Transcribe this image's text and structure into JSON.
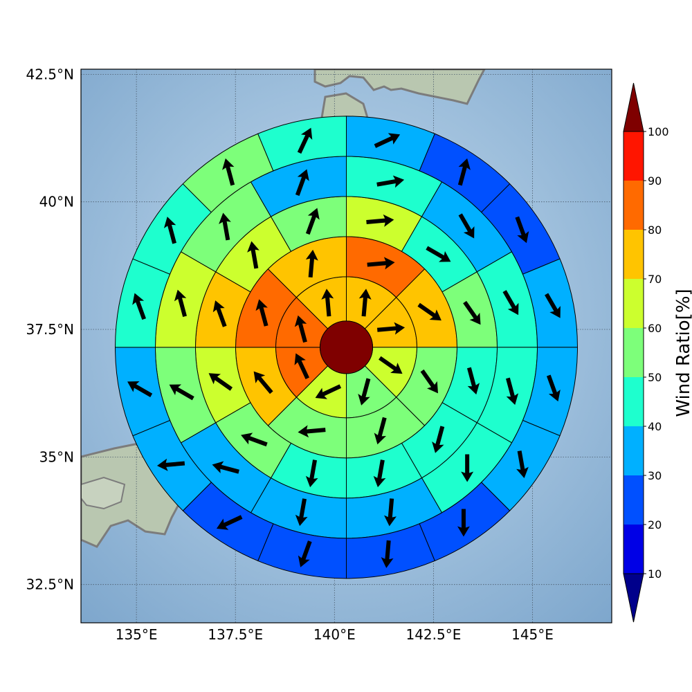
{
  "map": {
    "lon_ticks": [
      {
        "value": 135,
        "label": "135°E"
      },
      {
        "value": 137.5,
        "label": "137.5°E"
      },
      {
        "value": 140,
        "label": "140°E"
      },
      {
        "value": 142.5,
        "label": "142.5°E"
      },
      {
        "value": 145,
        "label": "145°E"
      }
    ],
    "lat_ticks": [
      {
        "value": 32.5,
        "label": "32.5°N"
      },
      {
        "value": 35,
        "label": "35°N"
      },
      {
        "value": 37.5,
        "label": "37.5°N"
      },
      {
        "value": 40,
        "label": "40°N"
      },
      {
        "value": 42.5,
        "label": "42.5°N"
      }
    ],
    "lon_range": [
      133.6,
      147.0
    ],
    "lat_range": [
      31.75,
      42.6
    ],
    "center": {
      "lon": 140.3,
      "lat": 37.15
    },
    "grid": true
  },
  "colorbar": {
    "label": "Wind Ratio[%]",
    "ticks": [
      "10",
      "20",
      "30",
      "40",
      "50",
      "60",
      "70",
      "80",
      "90",
      "100"
    ],
    "bins": [
      {
        "range": "<10",
        "color": "#00008b"
      },
      {
        "range": "10-20",
        "color": "#0000e6"
      },
      {
        "range": "20-30",
        "color": "#0050ff"
      },
      {
        "range": "30-40",
        "color": "#00b0ff"
      },
      {
        "range": "40-50",
        "color": "#1effce"
      },
      {
        "range": "50-60",
        "color": "#7dff7a"
      },
      {
        "range": "60-70",
        "color": "#ccff2e"
      },
      {
        "range": "70-80",
        "color": "#ffc400"
      },
      {
        "range": "80-90",
        "color": "#ff6a00"
      },
      {
        "range": "90-100",
        "color": "#ff1500"
      },
      {
        "range": ">100",
        "color": "#7f0000"
      }
    ]
  },
  "chart_data": {
    "type": "heatmap",
    "description_units": "sector wind ratio bin index (0:<10, 1:10-20 ... 9:90-100, 10:>100), arrow direction in degrees clockwise from north",
    "center_cell": {
      "bin": 10
    },
    "rings": [
      {
        "ring": 1,
        "sectors": [
          {
            "dir_deg": 0,
            "bin": 7,
            "arrow": 5
          },
          {
            "dir_deg": 45,
            "bin": 7,
            "arrow": 85
          },
          {
            "dir_deg": 90,
            "bin": 6,
            "arrow": 125
          },
          {
            "dir_deg": 135,
            "bin": 5,
            "arrow": 195
          },
          {
            "dir_deg": 180,
            "bin": 6,
            "arrow": 245
          },
          {
            "dir_deg": 225,
            "bin": 8,
            "arrow": 335
          },
          {
            "dir_deg": 270,
            "bin": 8,
            "arrow": 345
          },
          {
            "dir_deg": 315,
            "bin": 7,
            "arrow": 355
          }
        ]
      },
      {
        "ring": 2,
        "sectors": [
          {
            "dir_deg": 0,
            "bin": 8,
            "arrow": 85
          },
          {
            "dir_deg": 45,
            "bin": 7,
            "arrow": 125
          },
          {
            "dir_deg": 90,
            "bin": 5,
            "arrow": 145
          },
          {
            "dir_deg": 135,
            "bin": 5,
            "arrow": 195
          },
          {
            "dir_deg": 180,
            "bin": 5,
            "arrow": 265
          },
          {
            "dir_deg": 225,
            "bin": 7,
            "arrow": 320
          },
          {
            "dir_deg": 270,
            "bin": 8,
            "arrow": 345
          },
          {
            "dir_deg": 315,
            "bin": 7,
            "arrow": 5
          }
        ]
      },
      {
        "ring": 3,
        "sectors": [
          {
            "dir_deg": 0,
            "bin": 6,
            "arrow": 85
          },
          {
            "dir_deg": 30,
            "bin": 4,
            "arrow": 120
          },
          {
            "dir_deg": 60,
            "bin": 5,
            "arrow": 145
          },
          {
            "dir_deg": 90,
            "bin": 4,
            "arrow": 165
          },
          {
            "dir_deg": 120,
            "bin": 4,
            "arrow": 195
          },
          {
            "dir_deg": 150,
            "bin": 4,
            "arrow": 190
          },
          {
            "dir_deg": 180,
            "bin": 4,
            "arrow": 190
          },
          {
            "dir_deg": 210,
            "bin": 5,
            "arrow": 290
          },
          {
            "dir_deg": 240,
            "bin": 6,
            "arrow": 305
          },
          {
            "dir_deg": 270,
            "bin": 7,
            "arrow": 340
          },
          {
            "dir_deg": 300,
            "bin": 6,
            "arrow": 350
          },
          {
            "dir_deg": 330,
            "bin": 5,
            "arrow": 20
          }
        ]
      },
      {
        "ring": 4,
        "sectors": [
          {
            "dir_deg": 0,
            "bin": 4,
            "arrow": 80
          },
          {
            "dir_deg": 30,
            "bin": 3,
            "arrow": 150
          },
          {
            "dir_deg": 60,
            "bin": 4,
            "arrow": 150
          },
          {
            "dir_deg": 90,
            "bin": 4,
            "arrow": 165
          },
          {
            "dir_deg": 120,
            "bin": 4,
            "arrow": 180
          },
          {
            "dir_deg": 150,
            "bin": 3,
            "arrow": 185
          },
          {
            "dir_deg": 180,
            "bin": 3,
            "arrow": 190
          },
          {
            "dir_deg": 210,
            "bin": 3,
            "arrow": 285
          },
          {
            "dir_deg": 240,
            "bin": 5,
            "arrow": 300
          },
          {
            "dir_deg": 270,
            "bin": 6,
            "arrow": 345
          },
          {
            "dir_deg": 300,
            "bin": 5,
            "arrow": 350
          },
          {
            "dir_deg": 330,
            "bin": 3,
            "arrow": 20
          }
        ]
      },
      {
        "ring": 5,
        "sectors": [
          {
            "dir_deg": 0,
            "bin": 3,
            "arrow": 65
          },
          {
            "dir_deg": 22.5,
            "bin": 2,
            "arrow": 15
          },
          {
            "dir_deg": 45,
            "bin": 2,
            "arrow": 160
          },
          {
            "dir_deg": 67.5,
            "bin": 3,
            "arrow": 150
          },
          {
            "dir_deg": 90,
            "bin": 3,
            "arrow": 160
          },
          {
            "dir_deg": 112.5,
            "bin": 3,
            "arrow": 170
          },
          {
            "dir_deg": 135,
            "bin": 2,
            "arrow": 180
          },
          {
            "dir_deg": 157.5,
            "bin": 2,
            "arrow": 185
          },
          {
            "dir_deg": 180,
            "bin": 2,
            "arrow": 200
          },
          {
            "dir_deg": 202.5,
            "bin": 2,
            "arrow": 245
          },
          {
            "dir_deg": 225,
            "bin": 3,
            "arrow": 265
          },
          {
            "dir_deg": 247.5,
            "bin": 3,
            "arrow": 300
          },
          {
            "dir_deg": 270,
            "bin": 4,
            "arrow": 340
          },
          {
            "dir_deg": 292.5,
            "bin": 4,
            "arrow": 345
          },
          {
            "dir_deg": 315,
            "bin": 5,
            "arrow": 345
          },
          {
            "dir_deg": 337.5,
            "bin": 4,
            "arrow": 25
          }
        ]
      }
    ]
  }
}
